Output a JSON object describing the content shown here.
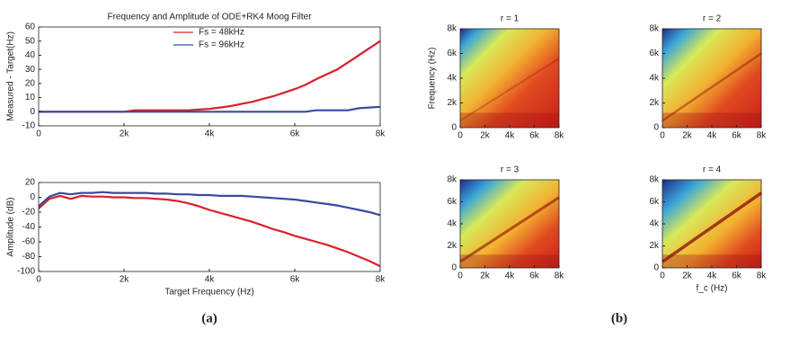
{
  "chart_data": [
    {
      "type": "line",
      "title": "Frequency and Amplitude of ODE+RK4 Moog Filter",
      "ylabel": "Measured - Target(Hz)",
      "x": [
        0,
        250,
        500,
        750,
        1000,
        1250,
        1500,
        1750,
        2000,
        2250,
        2500,
        2750,
        3000,
        3250,
        3500,
        3750,
        4000,
        4250,
        4500,
        4750,
        5000,
        5250,
        5500,
        5750,
        6000,
        6250,
        6500,
        6750,
        7000,
        7250,
        7500,
        7750,
        8000
      ],
      "series": [
        {
          "name": "Fs = 48kHz",
          "color": "#d9202a",
          "values": [
            0,
            0,
            0,
            0,
            0,
            0,
            0,
            0,
            0,
            1,
            1,
            1,
            1,
            1,
            1,
            1.5,
            2,
            3,
            4,
            5.5,
            7,
            9,
            11,
            13.5,
            16,
            19,
            23,
            26.5,
            30,
            35,
            40,
            45,
            50
          ]
        },
        {
          "name": "Fs = 96kHz",
          "color": "#3a4a9e",
          "values": [
            0,
            0,
            0,
            0,
            0,
            0,
            0,
            0,
            0,
            0,
            0,
            0,
            0,
            0,
            0,
            0,
            0,
            0,
            0,
            0,
            0,
            0,
            0,
            0,
            0,
            0,
            1,
            1,
            1,
            1,
            2.5,
            3,
            3.5
          ]
        }
      ],
      "xlim": [
        0,
        8000
      ],
      "xticks": [
        0,
        {
          "value": 2000,
          "label": "2k"
        },
        {
          "value": 4000,
          "label": "4k"
        },
        {
          "value": 6000,
          "label": "6k"
        },
        {
          "value": 8000,
          "label": "8k"
        }
      ],
      "ylim": [
        -10,
        60
      ],
      "yticks": [
        -10,
        0,
        10,
        20,
        30,
        40,
        50,
        60
      ],
      "legend": "upper center"
    },
    {
      "type": "line",
      "xlabel": "Target Frequency (Hz)",
      "ylabel": "Amplitude (dB)",
      "x": [
        0,
        250,
        500,
        750,
        1000,
        1250,
        1500,
        1750,
        2000,
        2250,
        2500,
        2750,
        3000,
        3250,
        3500,
        3750,
        4000,
        4250,
        4500,
        4750,
        5000,
        5250,
        5500,
        5750,
        6000,
        6250,
        6500,
        6750,
        7000,
        7250,
        7500,
        7750,
        8000
      ],
      "series": [
        {
          "color": "#d9202a",
          "values": [
            -15,
            -2,
            2,
            -2,
            2,
            1,
            1,
            0,
            0,
            -1,
            -1,
            -2,
            -3,
            -5,
            -8,
            -12,
            -17,
            -21,
            -25,
            -29,
            -33,
            -38,
            -43,
            -47,
            -52,
            -56,
            -60,
            -64,
            -69,
            -74,
            -80,
            -86,
            -93
          ]
        },
        {
          "color": "#3a4a9e",
          "values": [
            -12,
            1,
            6,
            4,
            6,
            6,
            7,
            6,
            6,
            6,
            6,
            5,
            5,
            4,
            4,
            3,
            3,
            2,
            2,
            2,
            1,
            0,
            -1,
            -2,
            -3,
            -5,
            -7,
            -9,
            -11,
            -14,
            -17,
            -20,
            -24
          ]
        }
      ],
      "xlim": [
        0,
        8000
      ],
      "xticks": [
        0,
        {
          "value": 2000,
          "label": "2k"
        },
        {
          "value": 4000,
          "label": "4k"
        },
        {
          "value": 6000,
          "label": "6k"
        },
        {
          "value": 8000,
          "label": "8k"
        }
      ],
      "ylim": [
        -100,
        20
      ],
      "yticks": [
        -100,
        -80,
        -60,
        -40,
        -20,
        0,
        20
      ]
    },
    {
      "type": "spectrogram",
      "title": "r = 1",
      "ylabel": "Frequency (Hz)",
      "xlim": [
        0,
        8000
      ],
      "xticks": [
        0,
        {
          "value": 2000,
          "label": "2k"
        },
        {
          "value": 4000,
          "label": "4k"
        },
        {
          "value": 6000,
          "label": "6k"
        },
        {
          "value": 8000,
          "label": "8k"
        }
      ],
      "ylim": [
        0,
        8000
      ],
      "yticks": [
        0,
        {
          "value": 2000,
          "label": "2k"
        },
        {
          "value": 4000,
          "label": "4k"
        },
        {
          "value": 6000,
          "label": "6k"
        },
        {
          "value": 8000,
          "label": "8k"
        }
      ]
    },
    {
      "type": "spectrogram",
      "title": "r = 2",
      "xlim": [
        0,
        8000
      ],
      "xticks": [
        0,
        {
          "value": 2000,
          "label": "2k"
        },
        {
          "value": 4000,
          "label": "4k"
        },
        {
          "value": 6000,
          "label": "6k"
        },
        {
          "value": 8000,
          "label": "8k"
        }
      ],
      "ylim": [
        0,
        8000
      ],
      "yticks": [
        0,
        {
          "value": 2000,
          "label": "2k"
        },
        {
          "value": 4000,
          "label": "4k"
        },
        {
          "value": 6000,
          "label": "6k"
        },
        {
          "value": 8000,
          "label": "8k"
        }
      ]
    },
    {
      "type": "spectrogram",
      "title": "r = 3",
      "xlim": [
        0,
        8000
      ],
      "xticks": [
        0,
        {
          "value": 2000,
          "label": "2k"
        },
        {
          "value": 4000,
          "label": "4k"
        },
        {
          "value": 6000,
          "label": "6k"
        },
        {
          "value": 8000,
          "label": "8k"
        }
      ],
      "ylim": [
        0,
        8000
      ],
      "yticks": [
        0,
        {
          "value": 2000,
          "label": "2k"
        },
        {
          "value": 4000,
          "label": "4k"
        },
        {
          "value": 6000,
          "label": "6k"
        },
        {
          "value": 8000,
          "label": "8k"
        }
      ]
    },
    {
      "type": "spectrogram",
      "title": "r = 4",
      "xlabel": "f_c (Hz)",
      "xlim": [
        0,
        8000
      ],
      "xticks": [
        0,
        {
          "value": 2000,
          "label": "2k"
        },
        {
          "value": 4000,
          "label": "4k"
        },
        {
          "value": 6000,
          "label": "6k"
        },
        {
          "value": 8000,
          "label": "8k"
        }
      ],
      "ylim": [
        0,
        8000
      ],
      "yticks": [
        0,
        {
          "value": 2000,
          "label": "2k"
        },
        {
          "value": 4000,
          "label": "4k"
        },
        {
          "value": 6000,
          "label": "6k"
        },
        {
          "value": 8000,
          "label": "8k"
        }
      ]
    }
  ],
  "captions": [
    "(a)",
    "(b)"
  ]
}
